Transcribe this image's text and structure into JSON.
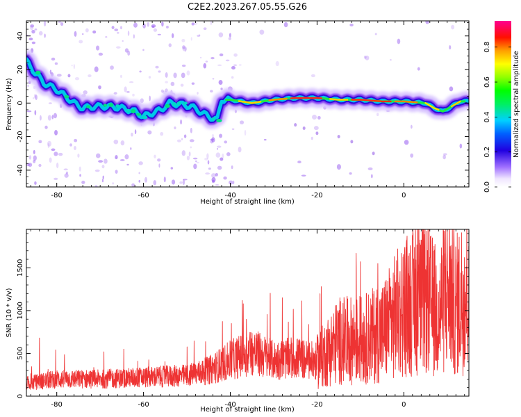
{
  "title": "C2E2.2023.267.05.55.G26",
  "chart_data": [
    {
      "type": "heatmap",
      "xlabel": "Height of straight line (km)",
      "ylabel": "Frequency (Hz)",
      "xlim": [
        -87,
        15
      ],
      "ylim": [
        -50,
        49
      ],
      "xticks": [
        -80,
        -60,
        -40,
        -20,
        0
      ],
      "yticks": [
        -40,
        -20,
        0,
        20,
        40
      ],
      "colorbar": {
        "label": "Normalized spectral amplitude",
        "range": [
          0,
          0.95
        ],
        "ticks": [
          "0.0",
          "0.2",
          "0.4",
          "0.6",
          "0.8"
        ],
        "colormap": "gist_ncar-like (white, violet, blue, cyan, green, yellow, orange, red, magenta)"
      },
      "ridge_center": [
        {
          "x": -87,
          "y": 25
        },
        {
          "x": -85,
          "y": 18
        },
        {
          "x": -83,
          "y": 12
        },
        {
          "x": -80,
          "y": 8
        },
        {
          "x": -78,
          "y": 4
        },
        {
          "x": -76,
          "y": 0
        },
        {
          "x": -74,
          "y": -3
        },
        {
          "x": -71,
          "y": -2
        },
        {
          "x": -68,
          "y": -2
        },
        {
          "x": -65,
          "y": -3
        },
        {
          "x": -62,
          "y": -5
        },
        {
          "x": -60,
          "y": -8
        },
        {
          "x": -58,
          "y": -6
        },
        {
          "x": -56,
          "y": -4
        },
        {
          "x": -54,
          "y": 0
        },
        {
          "x": -51,
          "y": -1
        },
        {
          "x": -49,
          "y": -2
        },
        {
          "x": -47,
          "y": -5
        },
        {
          "x": -45,
          "y": -8
        },
        {
          "x": -43,
          "y": -10
        },
        {
          "x": -42,
          "y": 2
        },
        {
          "x": -40,
          "y": 2
        },
        {
          "x": -35,
          "y": 0
        },
        {
          "x": -30,
          "y": 2
        },
        {
          "x": -25,
          "y": 3
        },
        {
          "x": -20,
          "y": 3
        },
        {
          "x": -15,
          "y": 2
        },
        {
          "x": -10,
          "y": 2
        },
        {
          "x": -5,
          "y": 1
        },
        {
          "x": 0,
          "y": 1
        },
        {
          "x": 5,
          "y": 0
        },
        {
          "x": 7,
          "y": -3
        },
        {
          "x": 9,
          "y": -5
        },
        {
          "x": 11,
          "y": -2
        },
        {
          "x": 13,
          "y": 1
        },
        {
          "x": 15,
          "y": 1
        }
      ]
    },
    {
      "type": "line",
      "xlabel": "Height of straight line (km)",
      "ylabel": "SNR (10 * v/v)",
      "xlim": [
        -87,
        15
      ],
      "ylim": [
        0,
        1950
      ],
      "xticks": [
        -80,
        -60,
        -40,
        -20,
        0
      ],
      "yticks": [
        0,
        500,
        1000,
        1500
      ],
      "series": [
        {
          "color": "#ee3333",
          "envelope_mean": [
            {
              "x": -87,
              "y": 150
            },
            {
              "x": -80,
              "y": 200
            },
            {
              "x": -70,
              "y": 200
            },
            {
              "x": -60,
              "y": 220
            },
            {
              "x": -50,
              "y": 240
            },
            {
              "x": -45,
              "y": 300
            },
            {
              "x": -40,
              "y": 420
            },
            {
              "x": -35,
              "y": 520
            },
            {
              "x": -30,
              "y": 420
            },
            {
              "x": -25,
              "y": 450
            },
            {
              "x": -20,
              "y": 400
            },
            {
              "x": -15,
              "y": 650
            },
            {
              "x": -10,
              "y": 650
            },
            {
              "x": -5,
              "y": 750
            },
            {
              "x": 0,
              "y": 1050
            },
            {
              "x": 5,
              "y": 1150
            },
            {
              "x": 8,
              "y": 950
            },
            {
              "x": 10,
              "y": 1300
            },
            {
              "x": 12,
              "y": 1050
            },
            {
              "x": 15,
              "y": 1300
            }
          ],
          "peaks": [
            {
              "x": -84,
              "y": 680
            },
            {
              "x": -37,
              "y": 1080
            },
            {
              "x": -28,
              "y": 1150
            },
            {
              "x": -19,
              "y": 1280
            },
            {
              "x": -11,
              "y": 1670
            },
            {
              "x": -6,
              "y": 1550
            },
            {
              "x": 4,
              "y": 1720
            },
            {
              "x": 10,
              "y": 1940
            },
            {
              "x": 12,
              "y": 1600
            },
            {
              "x": 15,
              "y": 1600
            }
          ]
        }
      ]
    }
  ]
}
